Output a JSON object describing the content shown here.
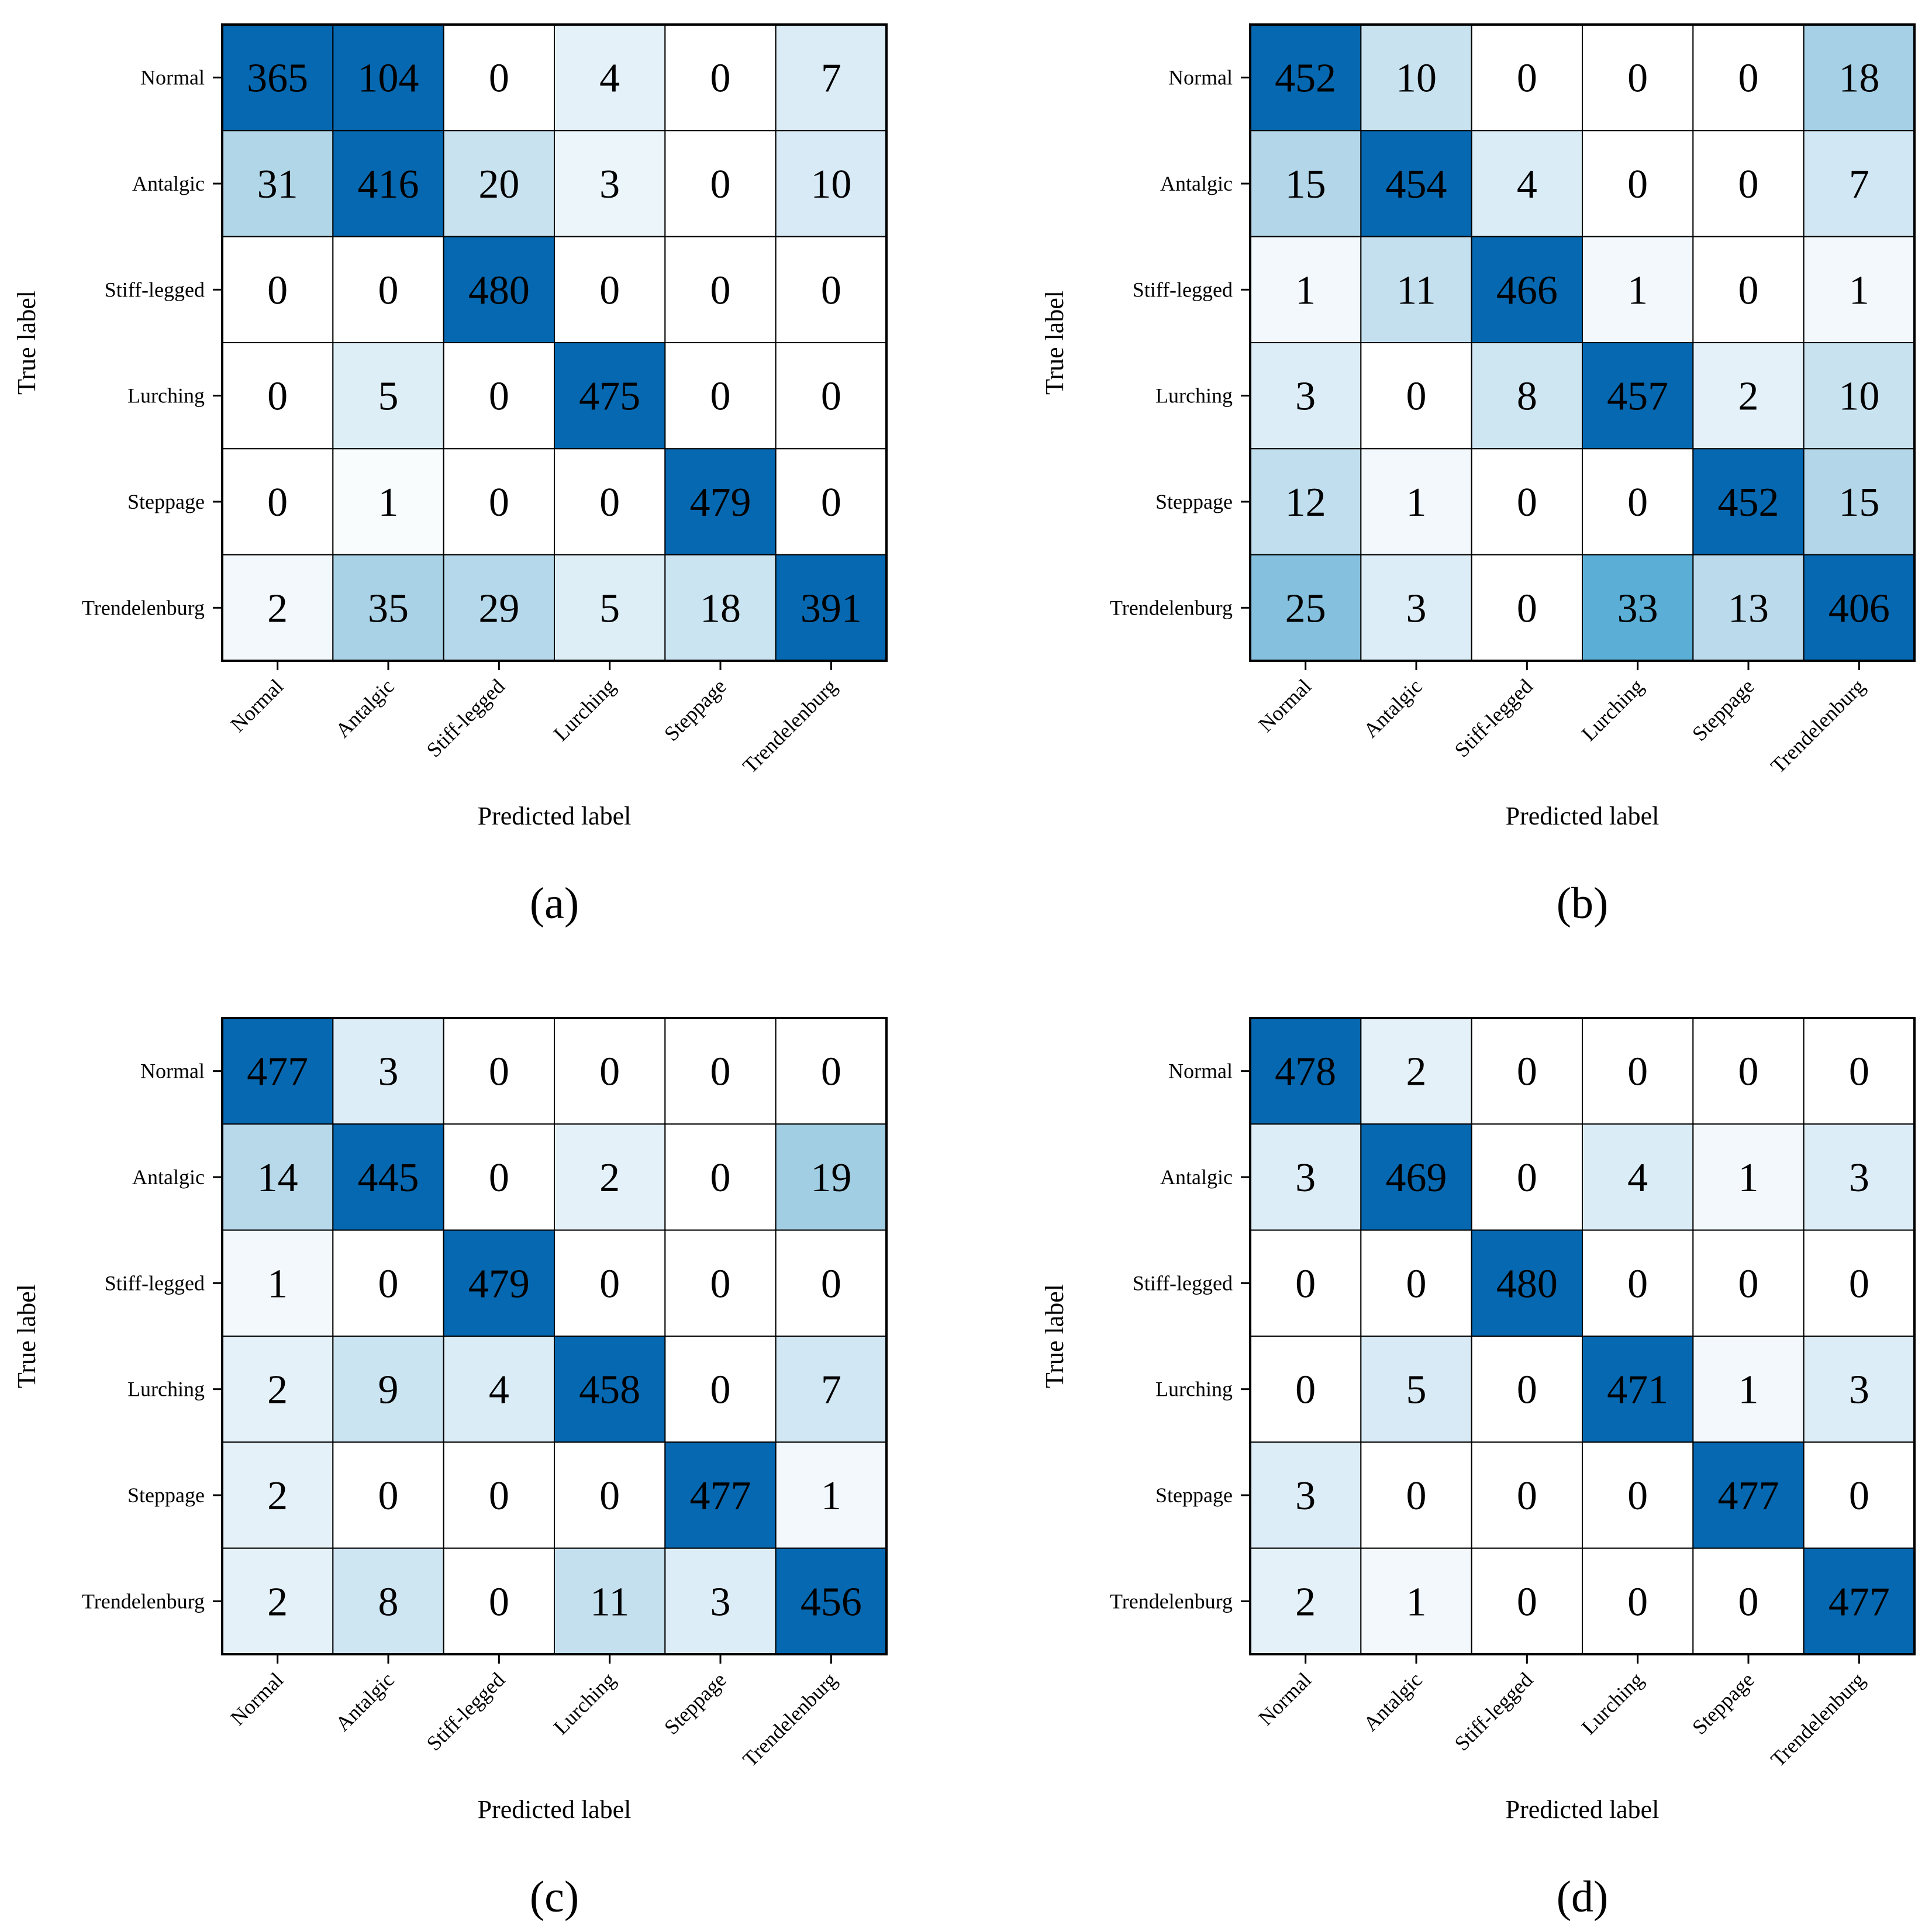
{
  "chart_data": [
    {
      "type": "heatmap",
      "panel": "(a)",
      "xlabel": "Predicted label",
      "ylabel": "True label",
      "x_categories": [
        "Normal",
        "Antalgic",
        "Stiff-legged",
        "Lurching",
        "Steppage",
        "Trendelenburg"
      ],
      "y_categories": [
        "Normal",
        "Antalgic",
        "Stiff-legged",
        "Lurching",
        "Steppage",
        "Trendelenburg"
      ],
      "values": [
        [
          365,
          104,
          0,
          4,
          0,
          7
        ],
        [
          31,
          416,
          20,
          3,
          0,
          10
        ],
        [
          0,
          0,
          480,
          0,
          0,
          0
        ],
        [
          0,
          5,
          0,
          475,
          0,
          0
        ],
        [
          0,
          1,
          0,
          0,
          479,
          0
        ],
        [
          2,
          35,
          29,
          5,
          18,
          391
        ]
      ],
      "colormap": "Blues",
      "vmin": 0,
      "vmax": 100
    },
    {
      "type": "heatmap",
      "panel": "(b)",
      "xlabel": "Predicted label",
      "ylabel": "True label",
      "x_categories": [
        "Normal",
        "Antalgic",
        "Stiff-legged",
        "Lurching",
        "Steppage",
        "Trendelenburg"
      ],
      "y_categories": [
        "Normal",
        "Antalgic",
        "Stiff-legged",
        "Lurching",
        "Steppage",
        "Trendelenburg"
      ],
      "values": [
        [
          452,
          10,
          0,
          0,
          0,
          18
        ],
        [
          15,
          454,
          4,
          0,
          0,
          7
        ],
        [
          1,
          11,
          466,
          1,
          0,
          1
        ],
        [
          3,
          0,
          8,
          457,
          2,
          10
        ],
        [
          12,
          1,
          0,
          0,
          452,
          15
        ],
        [
          25,
          3,
          0,
          33,
          13,
          406
        ]
      ],
      "colormap": "Blues",
      "vmin": 0,
      "vmax": 50
    },
    {
      "type": "heatmap",
      "panel": "(c)",
      "xlabel": "Predicted label",
      "ylabel": "True label",
      "x_categories": [
        "Normal",
        "Antalgic",
        "Stiff-legged",
        "Lurching",
        "Steppage",
        "Trendelenburg"
      ],
      "y_categories": [
        "Normal",
        "Antalgic",
        "Stiff-legged",
        "Lurching",
        "Steppage",
        "Trendelenburg"
      ],
      "values": [
        [
          477,
          3,
          0,
          0,
          0,
          0
        ],
        [
          14,
          445,
          0,
          2,
          0,
          19
        ],
        [
          1,
          0,
          479,
          0,
          0,
          0
        ],
        [
          2,
          9,
          4,
          458,
          0,
          7
        ],
        [
          2,
          0,
          0,
          0,
          477,
          1
        ],
        [
          2,
          8,
          0,
          11,
          3,
          456
        ]
      ],
      "colormap": "Blues",
      "vmin": 0,
      "vmax": 50
    },
    {
      "type": "heatmap",
      "panel": "(d)",
      "xlabel": "Predicted label",
      "ylabel": "True label",
      "x_categories": [
        "Normal",
        "Antalgic",
        "Stiff-legged",
        "Lurching",
        "Steppage",
        "Trendelenburg"
      ],
      "y_categories": [
        "Normal",
        "Antalgic",
        "Stiff-legged",
        "Lurching",
        "Steppage",
        "Trendelenburg"
      ],
      "values": [
        [
          478,
          2,
          0,
          0,
          0,
          0
        ],
        [
          3,
          469,
          0,
          4,
          1,
          3
        ],
        [
          0,
          0,
          480,
          0,
          0,
          0
        ],
        [
          0,
          5,
          0,
          471,
          1,
          3
        ],
        [
          3,
          0,
          0,
          0,
          477,
          0
        ],
        [
          2,
          1,
          0,
          0,
          0,
          477
        ]
      ],
      "colormap": "Blues",
      "vmin": 0,
      "vmax": 50
    }
  ]
}
